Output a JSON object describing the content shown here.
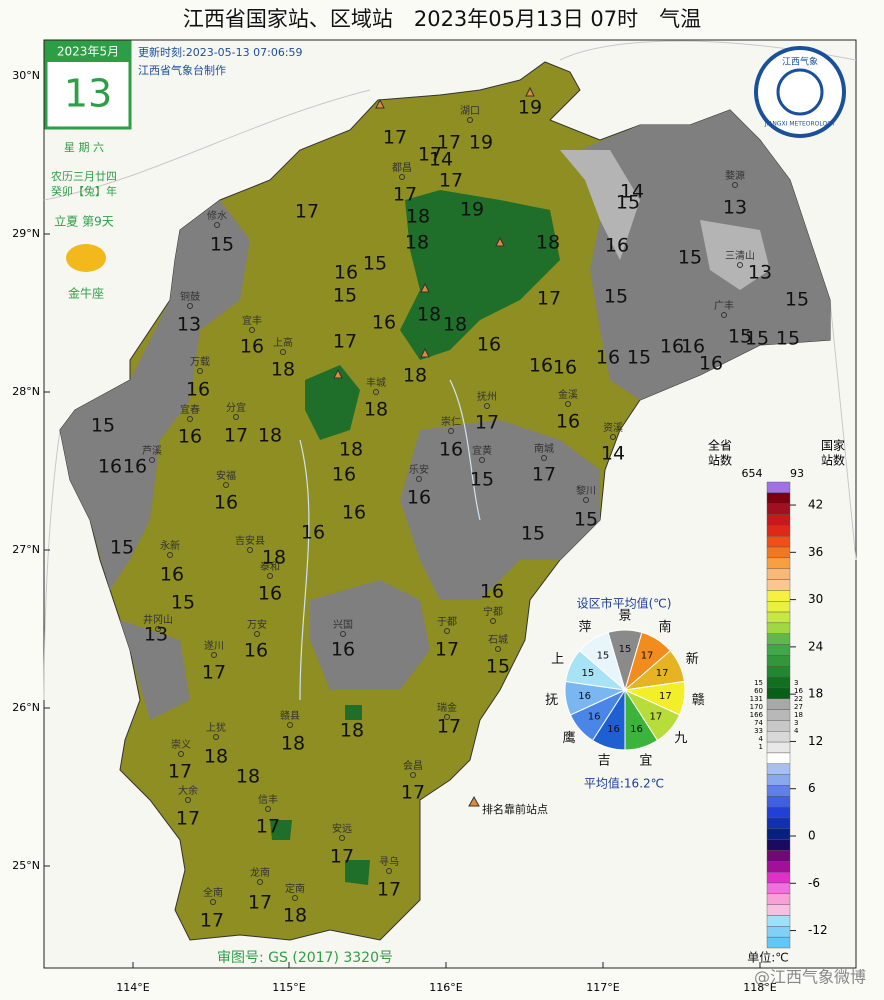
{
  "header": {
    "title": "江西省国家站、区域站　2023年05月13日 07时　气温",
    "update_time": "更新时刻:2023-05-13 07:06:59",
    "maker": "江西省气象台制作"
  },
  "calendar": {
    "month": "2023年5月",
    "day": "13",
    "weekday": "星 期 六",
    "lunar": "农历三月廿四",
    "year": "癸卯【兔】年",
    "solar_term": "立夏  第9天",
    "zodiac": "金牛座"
  },
  "logo": {
    "top": "江西气象",
    "bottom": "JIANGXI METEOROLOGY"
  },
  "axes": {
    "lat_labels": [
      "30°N",
      "29°N",
      "28°N",
      "27°N",
      "26°N",
      "25°N"
    ],
    "lon_labels": [
      "114°E",
      "115°E",
      "116°E",
      "117°E",
      "118°E"
    ]
  },
  "station_values": [
    19,
    17,
    17,
    17,
    19,
    14,
    17,
    17,
    17,
    18,
    19,
    18,
    14,
    15,
    13,
    15,
    18,
    16,
    15,
    13,
    16,
    15,
    15,
    17,
    15,
    15,
    13,
    16,
    18,
    18,
    16,
    16,
    17,
    16,
    16,
    16,
    15,
    16,
    16,
    15,
    15,
    15,
    16,
    18,
    18,
    16,
    18,
    15,
    17,
    18,
    16,
    18,
    16,
    17,
    16,
    14,
    16,
    16,
    16,
    15,
    17,
    16,
    16,
    16,
    16,
    15,
    15,
    15,
    18,
    16,
    16,
    15,
    16,
    13,
    17,
    16,
    16,
    17,
    15,
    17,
    18,
    18,
    18,
    17,
    18,
    17,
    17,
    17,
    17,
    17,
    17,
    18,
    17
  ],
  "place_names": [
    "铜鼓",
    "宜丰",
    "上高",
    "万载",
    "宜春",
    "分宜",
    "芦溪",
    "安福",
    "永新",
    "吉安县",
    "泰和",
    "万安",
    "遂川",
    "井冈山",
    "兴国",
    "于都",
    "瑞金",
    "会昌",
    "安远",
    "寻乌",
    "信丰",
    "龙南",
    "定南",
    "全南",
    "大余",
    "崇义",
    "上犹",
    "赣县",
    "宁都",
    "石城",
    "黎川",
    "资溪",
    "金溪",
    "抚州",
    "南城",
    "宜黄",
    "乐安",
    "崇仁",
    "丰城",
    "婺源",
    "三清山",
    "广丰",
    "修水",
    "都昌",
    "湖口"
  ],
  "city_average": {
    "title": "设区市平均值(℃)",
    "labels": [
      "景",
      "南",
      "新",
      "赣",
      "九",
      "宜",
      "吉",
      "鹰",
      "抚",
      "上",
      "萍"
    ],
    "values": [
      15,
      17,
      17,
      17,
      17,
      16,
      16,
      16,
      16,
      15,
      15
    ],
    "colors": [
      "#8a8a8a",
      "#f28c1c",
      "#e6b422",
      "#f2ee2a",
      "#b8dc3a",
      "#3cb43c",
      "#1e5fd2",
      "#4a86e8",
      "#7ab6f0",
      "#a8e2f5",
      "#e8f6fb"
    ],
    "average": "平均值:16.2℃"
  },
  "legend": {
    "total_label": "全省\n站数",
    "national_label": "国家\n站数",
    "total": 654,
    "national": 93,
    "total_counts": [
      15,
      60,
      131,
      170,
      166,
      74,
      33,
      4,
      1
    ],
    "national_counts": [
      3,
      16,
      22,
      27,
      18,
      3,
      4
    ],
    "ticks": [
      42,
      36,
      30,
      24,
      18,
      12,
      6,
      0,
      -6,
      -12
    ],
    "unit": "单位:℃"
  },
  "marker_note": "排名靠前站点",
  "approval": "审图号: GS (2017) 3320号",
  "watermark": "@江西气象微博"
}
